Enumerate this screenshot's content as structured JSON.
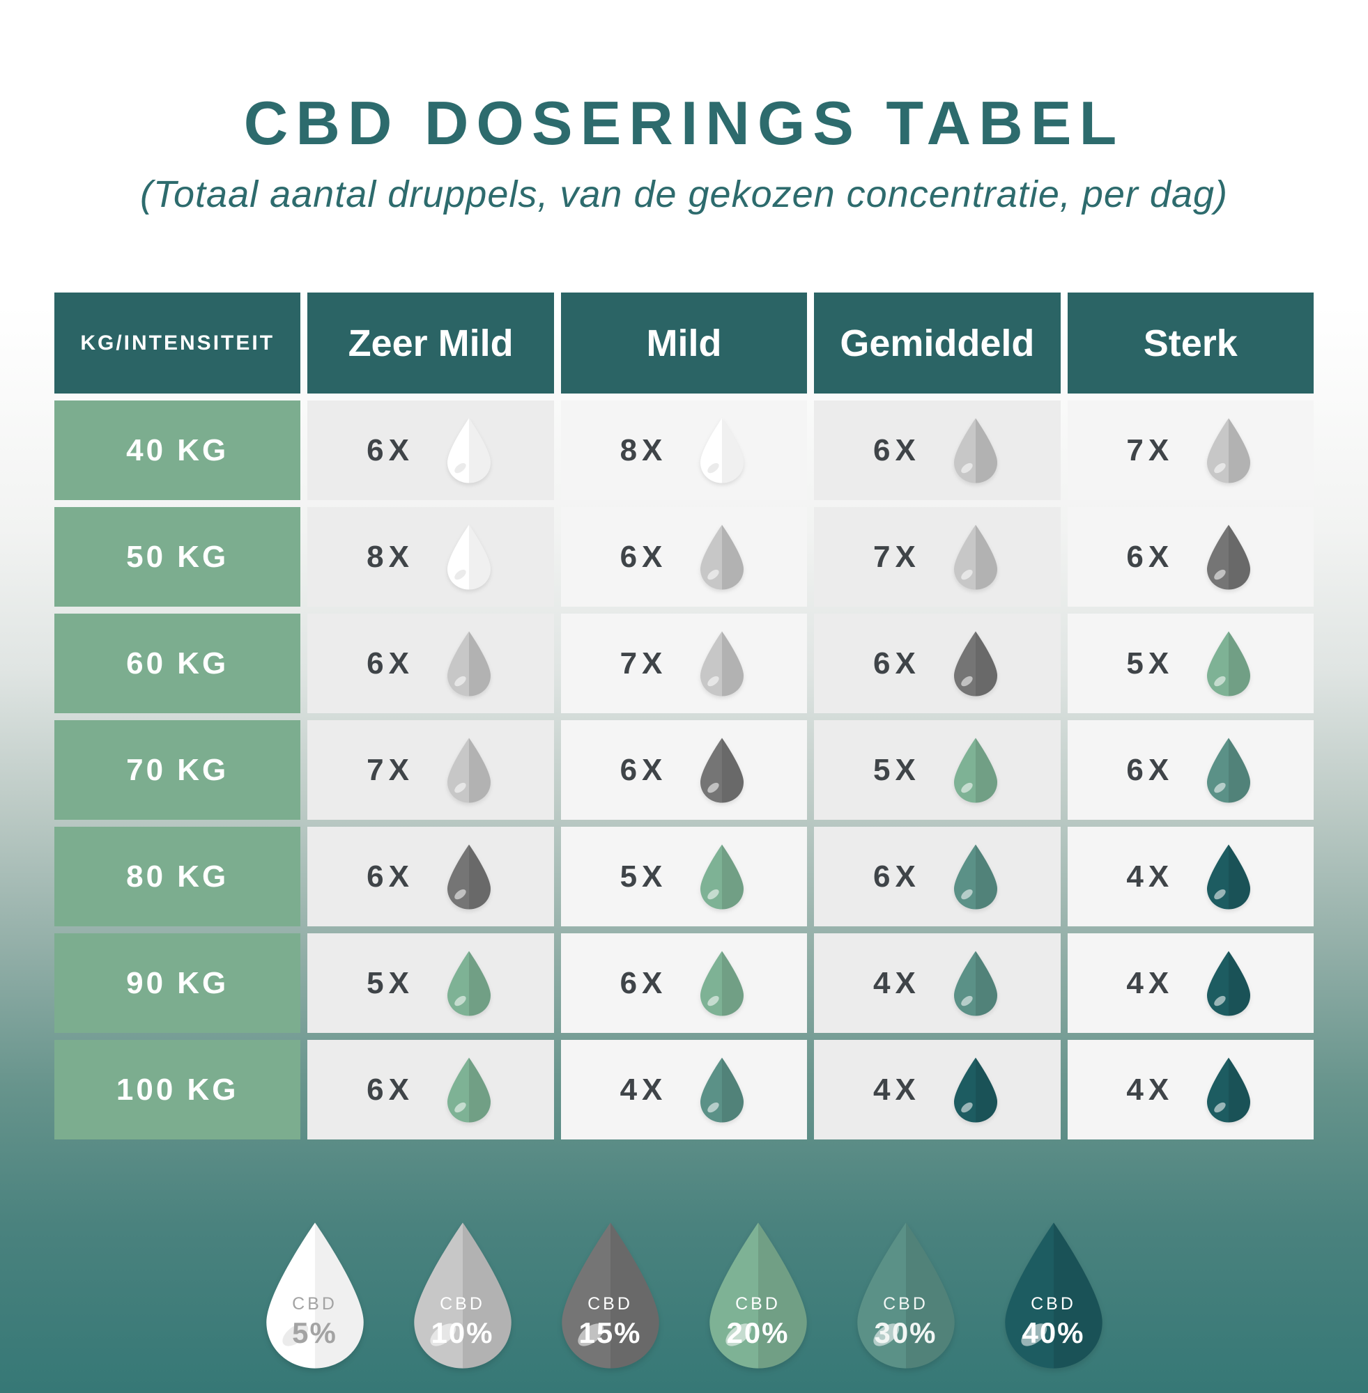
{
  "title": "CBD DOSERINGS TABEL",
  "subtitle": "(Totaal aantal druppels, van de gekozen concentratie, per dag)",
  "chart_data": {
    "type": "table",
    "title": "CBD DOSERINGS TABEL",
    "subtitle": "(Totaal aantal druppels, van de gekozen concentratie, per dag)",
    "columns": [
      "KG/INTENSITEIT",
      "Zeer Mild",
      "Mild",
      "Gemiddeld",
      "Sterk"
    ],
    "rows": [
      {
        "label": "40 KG",
        "cells": [
          {
            "count": "6X",
            "cbd": "5%"
          },
          {
            "count": "8X",
            "cbd": "5%"
          },
          {
            "count": "6X",
            "cbd": "10%"
          },
          {
            "count": "7X",
            "cbd": "10%"
          }
        ]
      },
      {
        "label": "50 KG",
        "cells": [
          {
            "count": "8X",
            "cbd": "5%"
          },
          {
            "count": "6X",
            "cbd": "10%"
          },
          {
            "count": "7X",
            "cbd": "10%"
          },
          {
            "count": "6X",
            "cbd": "15%"
          }
        ]
      },
      {
        "label": "60 KG",
        "cells": [
          {
            "count": "6X",
            "cbd": "10%"
          },
          {
            "count": "7X",
            "cbd": "10%"
          },
          {
            "count": "6X",
            "cbd": "15%"
          },
          {
            "count": "5X",
            "cbd": "20%"
          }
        ]
      },
      {
        "label": "70 KG",
        "cells": [
          {
            "count": "7X",
            "cbd": "10%"
          },
          {
            "count": "6X",
            "cbd": "15%"
          },
          {
            "count": "5X",
            "cbd": "20%"
          },
          {
            "count": "6X",
            "cbd": "30%"
          }
        ]
      },
      {
        "label": "80 KG",
        "cells": [
          {
            "count": "6X",
            "cbd": "15%"
          },
          {
            "count": "5X",
            "cbd": "20%"
          },
          {
            "count": "6X",
            "cbd": "30%"
          },
          {
            "count": "4X",
            "cbd": "40%"
          }
        ]
      },
      {
        "label": "90 KG",
        "cells": [
          {
            "count": "5X",
            "cbd": "20%"
          },
          {
            "count": "6X",
            "cbd": "20%"
          },
          {
            "count": "4X",
            "cbd": "30%"
          },
          {
            "count": "4X",
            "cbd": "40%"
          }
        ]
      },
      {
        "label": "100 KG",
        "cells": [
          {
            "count": "6X",
            "cbd": "20%"
          },
          {
            "count": "4X",
            "cbd": "30%"
          },
          {
            "count": "4X",
            "cbd": "40%"
          },
          {
            "count": "4X",
            "cbd": "40%"
          }
        ]
      }
    ],
    "legend": [
      {
        "label": "CBD",
        "pct": "5%"
      },
      {
        "label": "CBD",
        "pct": "10%"
      },
      {
        "label": "CBD",
        "pct": "15%"
      },
      {
        "label": "CBD",
        "pct": "20%"
      },
      {
        "label": "CBD",
        "pct": "30%"
      },
      {
        "label": "CBD",
        "pct": "40%"
      }
    ]
  },
  "styles": {
    "accent": "#2d6b6d",
    "header_bg": "#2b6465",
    "kg_bg": "#7cad8f",
    "cell_bg_a": "#ececec",
    "cell_bg_b": "#f5f5f5",
    "count_color": "#3f4448",
    "cbd_colors": {
      "5%": {
        "fill": "#ffffff",
        "text": "#a3a3a3"
      },
      "10%": {
        "fill": "#c7c7c7",
        "text": "#ffffff"
      },
      "15%": {
        "fill": "#757575",
        "text": "#ffffff"
      },
      "20%": {
        "fill": "#7eb295",
        "text": "#ffffff"
      },
      "30%": {
        "fill": "#5b9187",
        "text": "#f2f6f4"
      },
      "40%": {
        "fill": "#1d5c61",
        "text": "#ffffff"
      }
    }
  }
}
